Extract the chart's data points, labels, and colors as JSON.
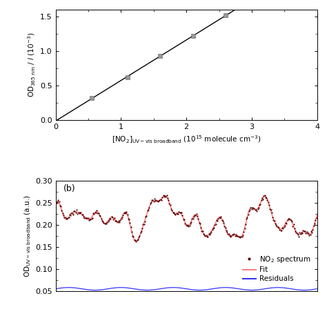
{
  "panel_a": {
    "scatter_x": [
      0.55,
      1.1,
      1.6,
      2.1,
      2.6
    ],
    "scatter_y": [
      0.32,
      0.62,
      0.93,
      1.22,
      1.52
    ],
    "xlabel": "[NO$_2$]$_{\\mathrm{UV-vis\\ broadband}}$ (10$^{15}$ molecule cm$^{-3}$)",
    "ylabel": "OD$_{365\\ \\mathrm{nm}}$ / $l$ (10$^{-3}$)",
    "xlim": [
      0,
      4
    ],
    "ylim": [
      0.0,
      1.6
    ],
    "yticks": [
      0.0,
      0.5,
      1.0,
      1.5
    ],
    "xticks": [
      0,
      1,
      2,
      3,
      4
    ],
    "marker_color": "#999999",
    "line_color": "#000000"
  },
  "panel_b": {
    "ylabel": "OD$_{\\mathrm{UV-vis\\ broadband}}$ (a.u.)",
    "ylim": [
      0.05,
      0.3
    ],
    "yticks": [
      0.05,
      0.1,
      0.15,
      0.2,
      0.25,
      0.3
    ],
    "label_b": "(b)",
    "scatter_color": "#5a0000",
    "fit_color": "#FF8080",
    "residuals_color": "#3333FF",
    "legend_labels": [
      "NO$_2$ spectrum",
      "Fit",
      "Residuals"
    ]
  },
  "background_color": "#ffffff"
}
